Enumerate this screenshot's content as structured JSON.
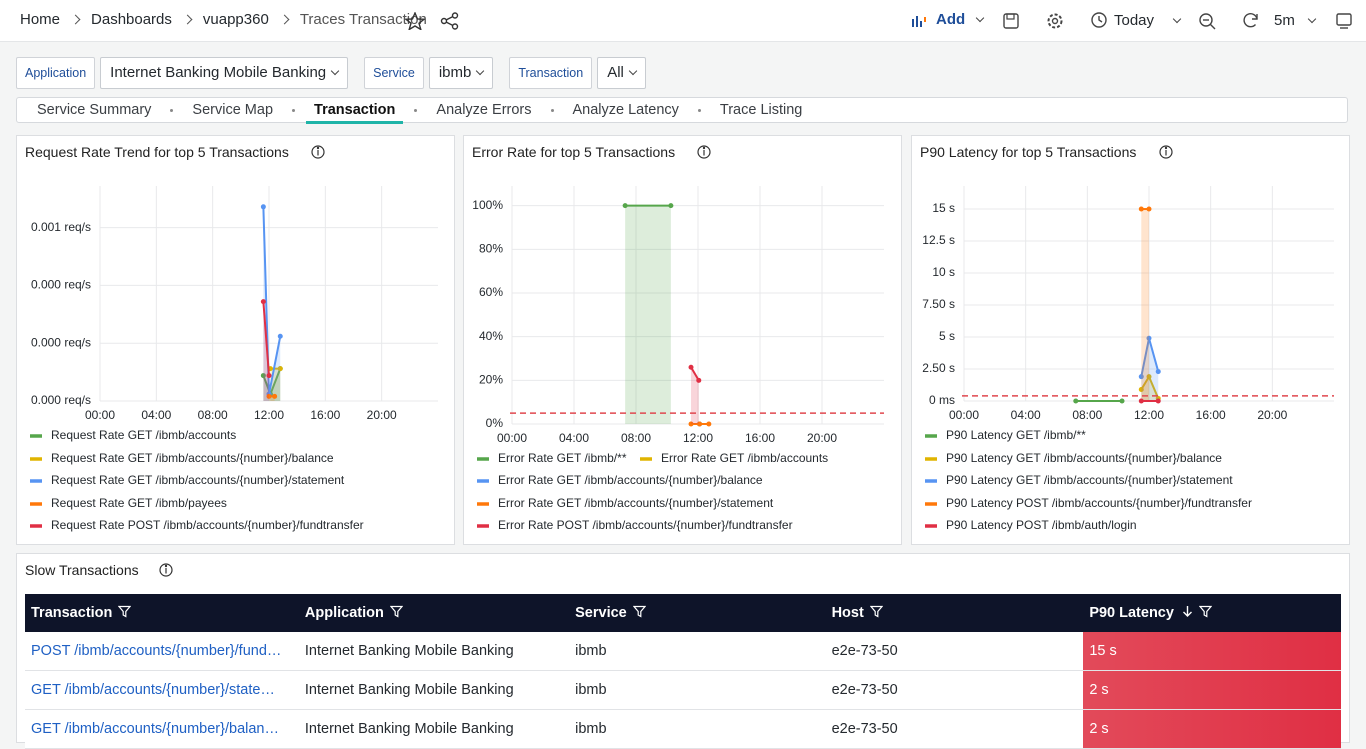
{
  "header": {
    "breadcrumbs": [
      "Home",
      "Dashboards",
      "vuapp360",
      "Traces Transaction"
    ],
    "toolbar": {
      "add": "Add",
      "time_range": "Today",
      "refresh": "5m"
    }
  },
  "filters": [
    {
      "label": "Application",
      "value": "Internet Banking Mobile Banking"
    },
    {
      "label": "Service",
      "value": "ibmb"
    },
    {
      "label": "Transaction",
      "value": "All"
    }
  ],
  "tabs": {
    "items": [
      "Service Summary",
      "Service Map",
      "Transaction",
      "Analyze Errors",
      "Analyze Latency",
      "Trace Listing"
    ],
    "active": 2
  },
  "panels": [
    {
      "title": "Request Rate Trend for top 5 Transactions",
      "chart": {
        "type": "line",
        "xlim": [
          0,
          24
        ],
        "xticks": [
          {
            "value": 0,
            "label": "00:00"
          },
          {
            "value": 4,
            "label": "04:00"
          },
          {
            "value": 8,
            "label": "08:00"
          },
          {
            "value": 12,
            "label": "12:00"
          },
          {
            "value": 16,
            "label": "16:00"
          },
          {
            "value": 20,
            "label": "20:00"
          }
        ],
        "ylim": [
          0,
          0.00093
        ],
        "yticks": [
          {
            "value": 0,
            "label": "0.000 req/s"
          },
          {
            "value": 0.00025,
            "label": "0.000 req/s"
          },
          {
            "value": 0.0005,
            "label": "0.000 req/s"
          },
          {
            "value": 0.00075,
            "label": "0.001 req/s"
          }
        ],
        "grid": true,
        "series": [
          {
            "name": "Request Rate GET /ibmb/accounts",
            "color": "#56a64b",
            "x": [
              11.6,
              12.1,
              12.8
            ],
            "values": [
              0.00011,
              3e-05,
              0.00014
            ]
          },
          {
            "name": "Request Rate GET /ibmb/accounts/{number}/balance",
            "color": "#e0b400",
            "x": [
              12.1,
              12.8
            ],
            "values": [
              0.00014,
              0.00014
            ]
          },
          {
            "name": "Request Rate GET /ibmb/accounts/{number}/statement",
            "color": "#5794f2",
            "x": [
              11.6,
              12.0,
              12.8
            ],
            "values": [
              0.00084,
              3e-05,
              0.00028
            ]
          },
          {
            "name": "Request Rate GET /ibmb/payees",
            "color": "#ff780a",
            "x": [
              12.0,
              12.4
            ],
            "values": [
              2e-05,
              2e-05
            ]
          },
          {
            "name": "Request Rate POST /ibmb/accounts/{number}/fundtransfer",
            "color": "#e02f44",
            "x": [
              11.6,
              12.0
            ],
            "values": [
              0.00043,
              0.00011
            ]
          }
        ]
      }
    },
    {
      "title": "Error Rate for top 5 Transactions",
      "chart": {
        "type": "line",
        "xlim": [
          0,
          24
        ],
        "xticks": [
          {
            "value": 0,
            "label": "00:00"
          },
          {
            "value": 4,
            "label": "04:00"
          },
          {
            "value": 8,
            "label": "08:00"
          },
          {
            "value": 12,
            "label": "12:00"
          },
          {
            "value": 16,
            "label": "16:00"
          },
          {
            "value": 20,
            "label": "20:00"
          }
        ],
        "ylim": [
          0,
          109
        ],
        "yticks": [
          {
            "value": 0,
            "label": "0%"
          },
          {
            "value": 20,
            "label": "20%"
          },
          {
            "value": 40,
            "label": "40%"
          },
          {
            "value": 60,
            "label": "60%"
          },
          {
            "value": 80,
            "label": "80%"
          },
          {
            "value": 100,
            "label": "100%"
          }
        ],
        "grid": true,
        "threshold": 5,
        "series": [
          {
            "name": "Error Rate GET /ibmb/**",
            "color": "#56a64b",
            "x": [
              7.3,
              10.25
            ],
            "values": [
              100,
              100
            ]
          },
          {
            "name": "Error Rate GET /ibmb/accounts",
            "color": "#e0b400",
            "x": [
              12.1
            ],
            "values": [
              0
            ]
          },
          {
            "name": "Error Rate GET /ibmb/accounts/{number}/balance",
            "color": "#5794f2",
            "x": [
              12.1
            ],
            "values": [
              0
            ]
          },
          {
            "name": "Error Rate GET /ibmb/accounts/{number}/statement",
            "color": "#ff780a",
            "x": [
              11.55,
              12.1,
              12.7
            ],
            "values": [
              0,
              0,
              0
            ]
          },
          {
            "name": "Error Rate POST /ibmb/accounts/{number}/fundtransfer",
            "color": "#e02f44",
            "x": [
              11.55,
              12.05
            ],
            "values": [
              26,
              20
            ]
          }
        ]
      }
    },
    {
      "title": "P90 Latency for top 5 Transactions",
      "chart": {
        "type": "line",
        "xlim": [
          0,
          24
        ],
        "xticks": [
          {
            "value": 0,
            "label": "00:00"
          },
          {
            "value": 4,
            "label": "04:00"
          },
          {
            "value": 8,
            "label": "08:00"
          },
          {
            "value": 12,
            "label": "12:00"
          },
          {
            "value": 16,
            "label": "16:00"
          },
          {
            "value": 20,
            "label": "20:00"
          }
        ],
        "ylim": [
          0,
          16.8
        ],
        "yticks": [
          {
            "value": 0,
            "label": "0 ms"
          },
          {
            "value": 2.5,
            "label": "2.50 s"
          },
          {
            "value": 5,
            "label": "5 s"
          },
          {
            "value": 7.5,
            "label": "7.50 s"
          },
          {
            "value": 10,
            "label": "10 s"
          },
          {
            "value": 12.5,
            "label": "12.5 s"
          },
          {
            "value": 15,
            "label": "15 s"
          }
        ],
        "grid": true,
        "threshold": 0.4,
        "series": [
          {
            "name": "P90 Latency GET /ibmb/**",
            "color": "#56a64b",
            "x": [
              7.25,
              10.25
            ],
            "values": [
              0,
              0
            ]
          },
          {
            "name": "P90 Latency GET /ibmb/accounts/{number}/balance",
            "color": "#e0b400",
            "x": [
              11.5,
              12.0,
              12.6
            ],
            "values": [
              0.9,
              1.9,
              0.2
            ]
          },
          {
            "name": "P90 Latency GET /ibmb/accounts/{number}/statement",
            "color": "#5794f2",
            "x": [
              11.5,
              12.0,
              12.6
            ],
            "values": [
              1.9,
              4.9,
              2.3
            ]
          },
          {
            "name": "P90 Latency POST /ibmb/accounts/{number}/fundtransfer",
            "color": "#ff780a",
            "x": [
              11.5,
              12.0
            ],
            "values": [
              15,
              15
            ]
          },
          {
            "name": "P90 Latency POST /ibmb/auth/login",
            "color": "#e02f44",
            "x": [
              11.5,
              12.6
            ],
            "values": [
              0,
              0
            ]
          }
        ]
      }
    }
  ],
  "table": {
    "title": "Slow Transactions",
    "columns": [
      "Transaction",
      "Application",
      "Service",
      "Host",
      "P90 Latency"
    ],
    "sort_column": 4,
    "rows": [
      [
        "POST /ibmb/accounts/{number}/fund…",
        "Internet Banking Mobile Banking",
        "ibmb",
        "e2e-73-50",
        "15 s"
      ],
      [
        "GET /ibmb/accounts/{number}/state…",
        "Internet Banking Mobile Banking",
        "ibmb",
        "e2e-73-50",
        "2 s"
      ],
      [
        "GET /ibmb/accounts/{number}/balan…",
        "Internet Banking Mobile Banking",
        "ibmb",
        "e2e-73-50",
        "2 s"
      ]
    ]
  }
}
